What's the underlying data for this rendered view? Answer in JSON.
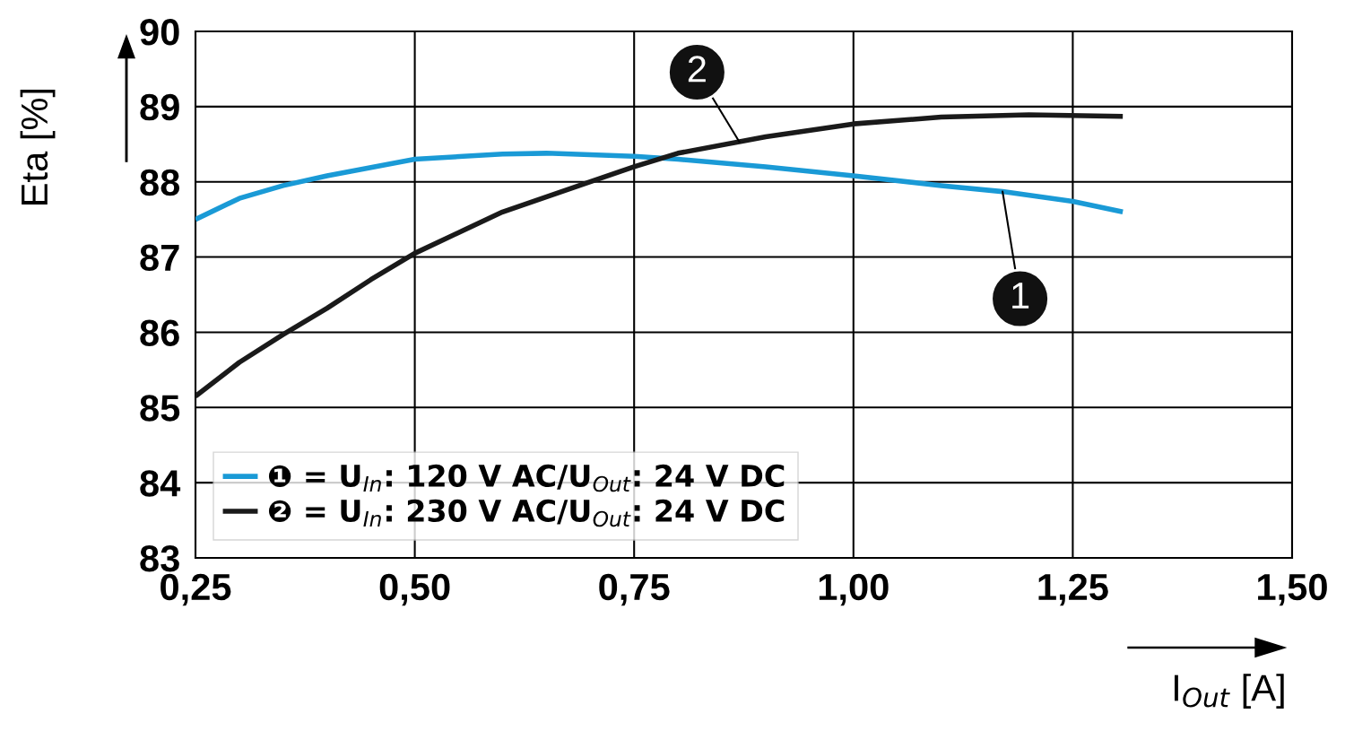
{
  "chart_data": {
    "type": "line",
    "xlabel": "I$_{Out}$ [A]",
    "ylabel": "Eta [%]",
    "xlim": [
      0.25,
      1.5
    ],
    "ylim": [
      83,
      90
    ],
    "xticks": [
      {
        "value": 0.25,
        "label": "0,25"
      },
      {
        "value": 0.5,
        "label": "0,50"
      },
      {
        "value": 0.75,
        "label": "0,75"
      },
      {
        "value": 1.0,
        "label": "1,00"
      },
      {
        "value": 1.25,
        "label": "1,25"
      },
      {
        "value": 1.5,
        "label": "1,50"
      }
    ],
    "yticks": [
      83,
      84,
      85,
      86,
      87,
      88,
      89,
      90
    ],
    "grid": true,
    "legend": "bottom left",
    "series": [
      {
        "name": "❶ = U$_{In}$: 120 V AC/U$_{Out}$: 24 V DC",
        "color": "#1a9ad6",
        "x": [
          0.25,
          0.3,
          0.35,
          0.4,
          0.5,
          0.6,
          0.65,
          0.75,
          0.8,
          0.9,
          1.0,
          1.1,
          1.17,
          1.25,
          1.307
        ],
        "values": [
          87.5,
          87.78,
          87.95,
          88.08,
          88.3,
          88.37,
          88.38,
          88.34,
          88.3,
          88.2,
          88.08,
          87.95,
          87.87,
          87.74,
          87.6
        ]
      },
      {
        "name": "❷ = U$_{In}$: 230 V AC/U$_{Out}$: 24 V DC",
        "color": "#1a1a1a",
        "x": [
          0.25,
          0.3,
          0.35,
          0.4,
          0.45,
          0.5,
          0.6,
          0.7,
          0.75,
          0.8,
          0.9,
          1.0,
          1.1,
          1.2,
          1.307
        ],
        "values": [
          85.15,
          85.6,
          85.97,
          86.32,
          86.7,
          87.05,
          87.6,
          88.0,
          88.2,
          88.38,
          88.6,
          88.77,
          88.86,
          88.89,
          88.87
        ]
      }
    ],
    "annotations": [
      {
        "text": "1",
        "x": 1.17,
        "y": 87.87
      },
      {
        "text": "2",
        "x": 0.87,
        "y": 88.53
      }
    ]
  }
}
